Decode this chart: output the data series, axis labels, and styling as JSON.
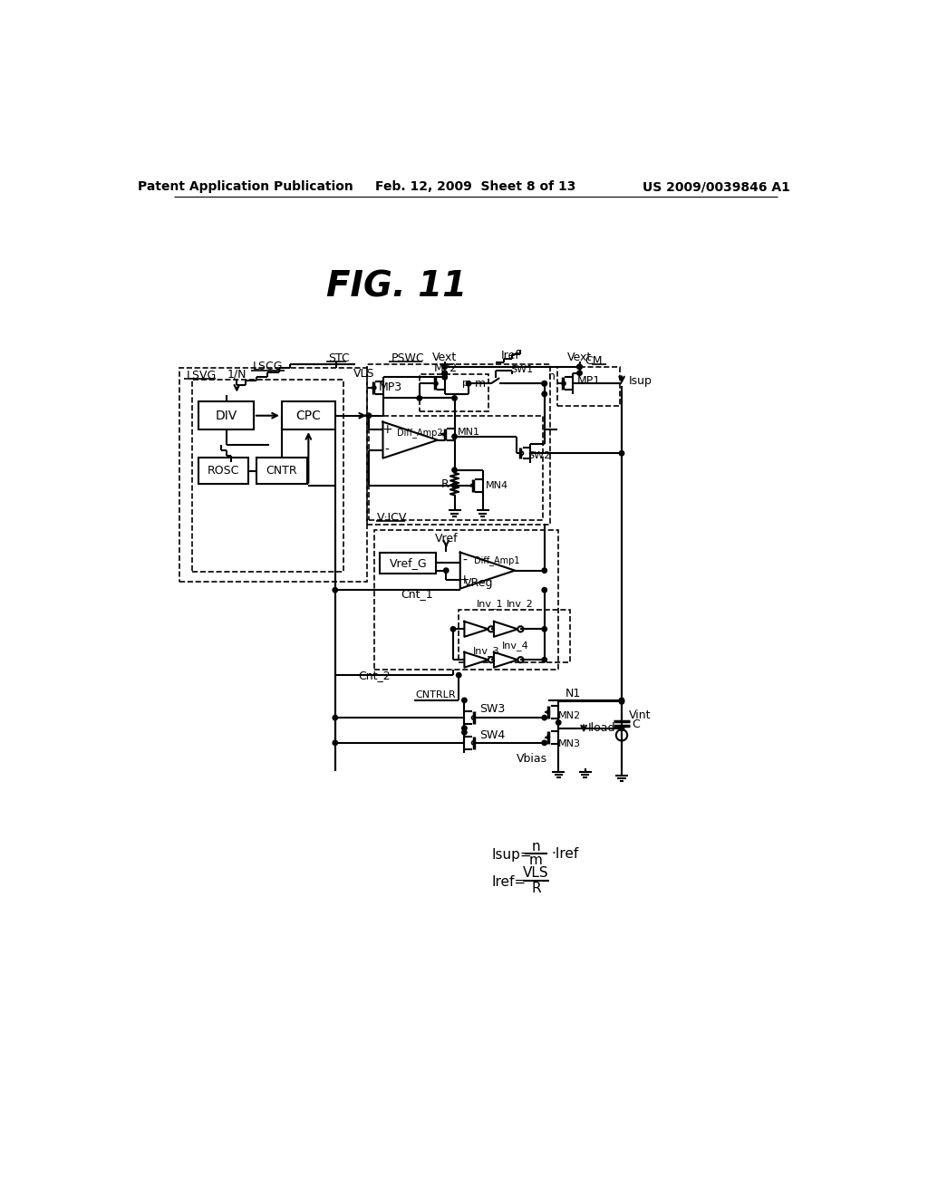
{
  "bg_color": "#ffffff",
  "text_color": "#000000",
  "header_left": "Patent Application Publication",
  "header_center": "Feb. 12, 2009  Sheet 8 of 13",
  "header_right": "US 2009/0039846 A1",
  "fig_title": "FIG. 11"
}
